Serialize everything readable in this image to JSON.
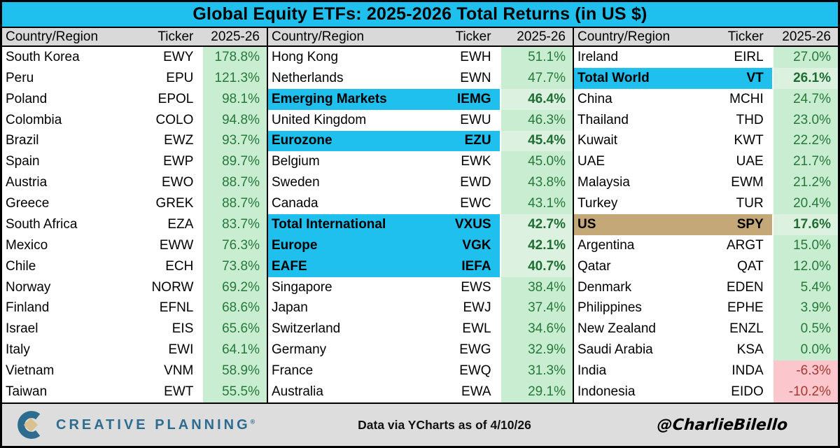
{
  "title": "Global Equity ETFs: 2025-2026 Total Returns (in US $)",
  "footer": {
    "brand": "CREATIVE PLANNING",
    "brand_mark": "®",
    "source": "Data via YCharts as of 4/10/26",
    "handle": "@CharlieBilello"
  },
  "colors": {
    "title_bg": "#1FBFEE",
    "header_bg": "#D9D9D9",
    "highlight_cyan": "#1FBFEE",
    "highlight_tan": "#C4A878",
    "positive_bg": "#C9EDD1",
    "positive_text": "#26793A",
    "negative_bg": "#FBC6CC",
    "negative_text": "#A43A32",
    "logo_blue": "#2D6C8F",
    "logo_tan": "#D9C28F"
  },
  "chart_data": {
    "type": "table",
    "title": "Global Equity ETFs: 2025-2026 Total Returns (in US $)",
    "columns": [
      "Country/Region",
      "Ticker",
      "2025-26"
    ],
    "tables": [
      {
        "rows": [
          {
            "country": "South Korea",
            "ticker": "EWY",
            "value": "178.8%",
            "highlight": "none",
            "negative": false
          },
          {
            "country": "Peru",
            "ticker": "EPU",
            "value": "121.3%",
            "highlight": "none",
            "negative": false
          },
          {
            "country": "Poland",
            "ticker": "EPOL",
            "value": "98.1%",
            "highlight": "none",
            "negative": false
          },
          {
            "country": "Colombia",
            "ticker": "COLO",
            "value": "94.8%",
            "highlight": "none",
            "negative": false
          },
          {
            "country": "Brazil",
            "ticker": "EWZ",
            "value": "93.7%",
            "highlight": "none",
            "negative": false
          },
          {
            "country": "Spain",
            "ticker": "EWP",
            "value": "89.7%",
            "highlight": "none",
            "negative": false
          },
          {
            "country": "Austria",
            "ticker": "EWO",
            "value": "88.7%",
            "highlight": "none",
            "negative": false
          },
          {
            "country": "Greece",
            "ticker": "GREK",
            "value": "88.7%",
            "highlight": "none",
            "negative": false
          },
          {
            "country": "South Africa",
            "ticker": "EZA",
            "value": "83.7%",
            "highlight": "none",
            "negative": false
          },
          {
            "country": "Mexico",
            "ticker": "EWW",
            "value": "76.3%",
            "highlight": "none",
            "negative": false
          },
          {
            "country": "Chile",
            "ticker": "ECH",
            "value": "73.8%",
            "highlight": "none",
            "negative": false
          },
          {
            "country": "Norway",
            "ticker": "NORW",
            "value": "69.2%",
            "highlight": "none",
            "negative": false
          },
          {
            "country": "Finland",
            "ticker": "EFNL",
            "value": "68.6%",
            "highlight": "none",
            "negative": false
          },
          {
            "country": "Israel",
            "ticker": "EIS",
            "value": "65.6%",
            "highlight": "none",
            "negative": false
          },
          {
            "country": "Italy",
            "ticker": "EWI",
            "value": "64.1%",
            "highlight": "none",
            "negative": false
          },
          {
            "country": "Vietnam",
            "ticker": "VNM",
            "value": "58.9%",
            "highlight": "none",
            "negative": false
          },
          {
            "country": "Taiwan",
            "ticker": "EWT",
            "value": "55.5%",
            "highlight": "none",
            "negative": false
          }
        ]
      },
      {
        "rows": [
          {
            "country": "Hong Kong",
            "ticker": "EWH",
            "value": "51.1%",
            "highlight": "none",
            "negative": false
          },
          {
            "country": "Netherlands",
            "ticker": "EWN",
            "value": "47.7%",
            "highlight": "none",
            "negative": false
          },
          {
            "country": "Emerging Markets",
            "ticker": "IEMG",
            "value": "46.4%",
            "highlight": "cyan",
            "negative": false
          },
          {
            "country": "United Kingdom",
            "ticker": "EWU",
            "value": "46.3%",
            "highlight": "none",
            "negative": false
          },
          {
            "country": "Eurozone",
            "ticker": "EZU",
            "value": "45.4%",
            "highlight": "cyan",
            "negative": false
          },
          {
            "country": "Belgium",
            "ticker": "EWK",
            "value": "45.0%",
            "highlight": "none",
            "negative": false
          },
          {
            "country": "Sweden",
            "ticker": "EWD",
            "value": "43.8%",
            "highlight": "none",
            "negative": false
          },
          {
            "country": "Canada",
            "ticker": "EWC",
            "value": "43.1%",
            "highlight": "none",
            "negative": false
          },
          {
            "country": "Total International",
            "ticker": "VXUS",
            "value": "42.7%",
            "highlight": "cyan",
            "negative": false
          },
          {
            "country": "Europe",
            "ticker": "VGK",
            "value": "42.1%",
            "highlight": "cyan",
            "negative": false
          },
          {
            "country": "EAFE",
            "ticker": "IEFA",
            "value": "40.7%",
            "highlight": "cyan",
            "negative": false
          },
          {
            "country": "Singapore",
            "ticker": "EWS",
            "value": "38.4%",
            "highlight": "none",
            "negative": false
          },
          {
            "country": "Japan",
            "ticker": "EWJ",
            "value": "37.4%",
            "highlight": "none",
            "negative": false
          },
          {
            "country": "Switzerland",
            "ticker": "EWL",
            "value": "34.6%",
            "highlight": "none",
            "negative": false
          },
          {
            "country": "Germany",
            "ticker": "EWG",
            "value": "32.9%",
            "highlight": "none",
            "negative": false
          },
          {
            "country": "France",
            "ticker": "EWQ",
            "value": "31.3%",
            "highlight": "none",
            "negative": false
          },
          {
            "country": "Australia",
            "ticker": "EWA",
            "value": "29.1%",
            "highlight": "none",
            "negative": false
          }
        ]
      },
      {
        "rows": [
          {
            "country": "Ireland",
            "ticker": "EIRL",
            "value": "27.0%",
            "highlight": "none",
            "negative": false
          },
          {
            "country": "Total World",
            "ticker": "VT",
            "value": "26.1%",
            "highlight": "cyan",
            "negative": false
          },
          {
            "country": "China",
            "ticker": "MCHI",
            "value": "24.7%",
            "highlight": "none",
            "negative": false
          },
          {
            "country": "Thailand",
            "ticker": "THD",
            "value": "23.0%",
            "highlight": "none",
            "negative": false
          },
          {
            "country": "Kuwait",
            "ticker": "KWT",
            "value": "22.2%",
            "highlight": "none",
            "negative": false
          },
          {
            "country": "UAE",
            "ticker": "UAE",
            "value": "21.7%",
            "highlight": "none",
            "negative": false
          },
          {
            "country": "Malaysia",
            "ticker": "EWM",
            "value": "21.2%",
            "highlight": "none",
            "negative": false
          },
          {
            "country": "Turkey",
            "ticker": "TUR",
            "value": "20.4%",
            "highlight": "none",
            "negative": false
          },
          {
            "country": "US",
            "ticker": "SPY",
            "value": "17.6%",
            "highlight": "tan",
            "negative": false
          },
          {
            "country": "Argentina",
            "ticker": "ARGT",
            "value": "15.0%",
            "highlight": "none",
            "negative": false
          },
          {
            "country": "Qatar",
            "ticker": "QAT",
            "value": "12.0%",
            "highlight": "none",
            "negative": false
          },
          {
            "country": "Denmark",
            "ticker": "EDEN",
            "value": "5.4%",
            "highlight": "none",
            "negative": false
          },
          {
            "country": "Philippines",
            "ticker": "EPHE",
            "value": "3.9%",
            "highlight": "none",
            "negative": false
          },
          {
            "country": "New Zealand",
            "ticker": "ENZL",
            "value": "0.5%",
            "highlight": "none",
            "negative": false
          },
          {
            "country": "Saudi Arabia",
            "ticker": "KSA",
            "value": "0.0%",
            "highlight": "none",
            "negative": false
          },
          {
            "country": "India",
            "ticker": "INDA",
            "value": "-6.3%",
            "highlight": "none",
            "negative": true
          },
          {
            "country": "Indonesia",
            "ticker": "EIDO",
            "value": "-10.2%",
            "highlight": "none",
            "negative": true
          }
        ]
      }
    ]
  }
}
